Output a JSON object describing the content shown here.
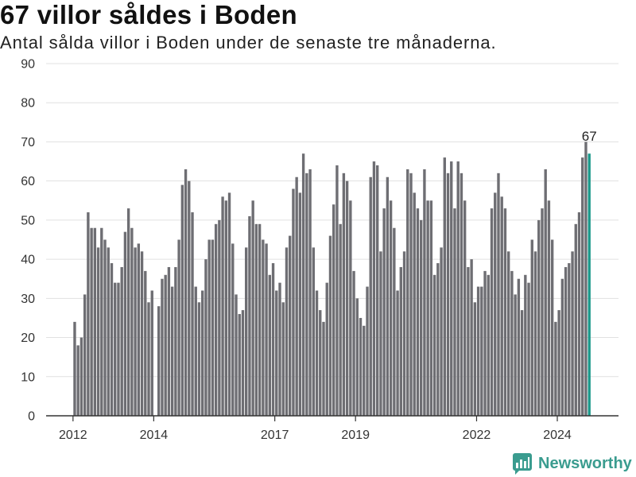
{
  "chart_data": {
    "type": "bar",
    "title": "67 villor såldes i Boden",
    "subtitle": "Antal sålda villor i Boden under de senaste tre månaderna.",
    "xlabel": "",
    "ylabel": "",
    "ylim": [
      0,
      90
    ],
    "yticks": [
      0,
      10,
      20,
      30,
      40,
      50,
      60,
      70,
      80,
      90
    ],
    "xtick_labels": [
      "2012",
      "2014",
      "2017",
      "2019",
      "2022",
      "2024"
    ],
    "grid": true,
    "x": [
      "2012-01",
      "2012-02",
      "2012-03",
      "2012-04",
      "2012-05",
      "2012-06",
      "2012-07",
      "2012-08",
      "2012-09",
      "2012-10",
      "2012-11",
      "2012-12",
      "2013-01",
      "2013-02",
      "2013-03",
      "2013-04",
      "2013-05",
      "2013-06",
      "2013-07",
      "2013-08",
      "2013-09",
      "2013-10",
      "2013-11",
      "2013-12",
      "2014-01",
      "2014-02",
      "2014-03",
      "2014-04",
      "2014-05",
      "2014-06",
      "2014-07",
      "2014-08",
      "2014-09",
      "2014-10",
      "2014-11",
      "2014-12",
      "2015-01",
      "2015-02",
      "2015-03",
      "2015-04",
      "2015-05",
      "2015-06",
      "2015-07",
      "2015-08",
      "2015-09",
      "2015-10",
      "2015-11",
      "2015-12",
      "2016-01",
      "2016-02",
      "2016-03",
      "2016-04",
      "2016-05",
      "2016-06",
      "2016-07",
      "2016-08",
      "2016-09",
      "2016-10",
      "2016-11",
      "2016-12",
      "2017-01",
      "2017-02",
      "2017-03",
      "2017-04",
      "2017-05",
      "2017-06",
      "2017-07",
      "2017-08",
      "2017-09",
      "2017-10",
      "2017-11",
      "2017-12",
      "2018-01",
      "2018-02",
      "2018-03",
      "2018-04",
      "2018-05",
      "2018-06",
      "2018-07",
      "2018-08",
      "2018-09",
      "2018-10",
      "2018-11",
      "2018-12",
      "2019-01",
      "2019-02",
      "2019-03",
      "2019-04",
      "2019-05",
      "2019-06",
      "2019-07",
      "2019-08",
      "2019-09",
      "2019-10",
      "2019-11",
      "2019-12",
      "2020-01",
      "2020-02",
      "2020-03",
      "2020-04",
      "2020-05",
      "2020-06",
      "2020-07",
      "2020-08",
      "2020-09",
      "2020-10",
      "2020-11",
      "2020-12",
      "2021-01",
      "2021-02",
      "2021-03",
      "2021-04",
      "2021-05",
      "2021-06",
      "2021-07",
      "2021-08",
      "2021-09",
      "2021-10",
      "2021-11",
      "2021-12",
      "2022-01",
      "2022-02",
      "2022-03",
      "2022-04",
      "2022-05",
      "2022-06",
      "2022-07",
      "2022-08",
      "2022-09",
      "2022-10",
      "2022-11",
      "2022-12",
      "2023-01",
      "2023-02",
      "2023-03",
      "2023-04",
      "2023-05",
      "2023-06",
      "2023-07",
      "2023-08",
      "2023-09",
      "2023-10",
      "2023-11",
      "2023-12",
      "2024-01",
      "2024-02",
      "2024-03",
      "2024-04",
      "2024-05",
      "2024-06",
      "2024-07",
      "2024-08",
      "2024-09",
      "2024-10"
    ],
    "values": [
      24,
      18,
      20,
      31,
      52,
      48,
      48,
      43,
      48,
      45,
      43,
      39,
      34,
      34,
      38,
      47,
      53,
      48,
      43,
      44,
      42,
      37,
      29,
      32,
      null,
      28,
      35,
      36,
      38,
      33,
      38,
      45,
      59,
      63,
      60,
      52,
      33,
      29,
      32,
      40,
      45,
      45,
      49,
      50,
      56,
      55,
      57,
      44,
      31,
      26,
      27,
      43,
      51,
      55,
      49,
      49,
      45,
      44,
      36,
      39,
      32,
      34,
      29,
      43,
      46,
      58,
      61,
      57,
      67,
      62,
      63,
      43,
      32,
      27,
      24,
      34,
      46,
      54,
      64,
      49,
      62,
      60,
      55,
      37,
      30,
      25,
      23,
      33,
      61,
      65,
      64,
      42,
      53,
      61,
      55,
      48,
      32,
      38,
      42,
      63,
      62,
      57,
      53,
      50,
      63,
      55,
      55,
      36,
      39,
      43,
      66,
      62,
      65,
      53,
      65,
      62,
      55,
      38,
      40,
      29,
      33,
      33,
      37,
      36,
      53,
      57,
      62,
      56,
      53,
      42,
      37,
      31,
      35,
      27,
      36,
      34,
      45,
      42,
      50,
      53,
      63,
      55,
      45,
      24,
      27,
      35,
      38,
      39,
      42,
      49,
      52,
      66,
      70,
      67
    ],
    "highlight": {
      "x": "2024-10",
      "value": 67
    },
    "data_labels": [
      {
        "x": "2024-10",
        "label": "67"
      }
    ]
  },
  "brand": {
    "name": "Newsworthy",
    "icon": "newsworthy-bar-chart-icon"
  },
  "colors": {
    "bar": "#6e6e73",
    "highlight": "#1b998b",
    "grid": "#e1e1e1",
    "axis": "#333333",
    "brand": "#3a9c8f"
  }
}
